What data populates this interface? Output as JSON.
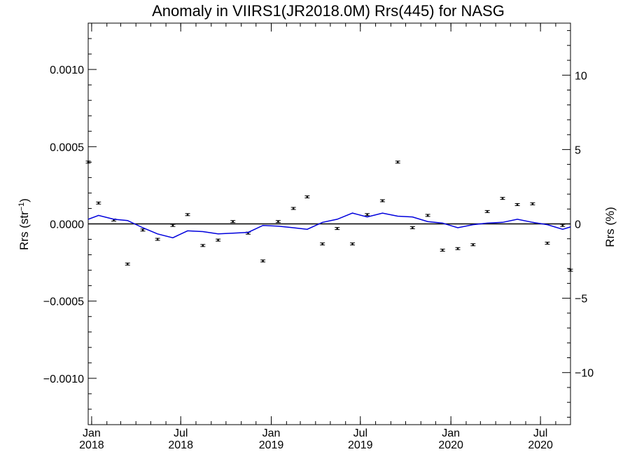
{
  "chart_data": {
    "type": "scatter",
    "title": "Anomaly in VIIRS1(JR2018.0M) Rrs(445) for NASG",
    "ylabel": "Rrs (str",
    "ylabel_sup": "−1",
    "ylabel_close": ")",
    "y2label": "Rrs (%)",
    "xlim": [
      "2017-12-25",
      "2020-08-31"
    ],
    "ylim": [
      -0.0013,
      0.0013
    ],
    "y2lim": [
      -13.5,
      13.5
    ],
    "grid": false,
    "zero_line": true,
    "y_ticks": [
      {
        "value": 0.001,
        "label": "0.0010"
      },
      {
        "value": 0.0005,
        "label": "0.0005"
      },
      {
        "value": 0,
        "label": "0.0000"
      },
      {
        "value": -0.0005,
        "label": "−0.0005"
      },
      {
        "value": -0.001,
        "label": "−0.0010"
      }
    ],
    "y2_ticks": [
      {
        "value": 10,
        "label": "10"
      },
      {
        "value": 5,
        "label": "5"
      },
      {
        "value": 0,
        "label": "0"
      },
      {
        "value": -5,
        "label": "−5"
      },
      {
        "value": -10,
        "label": "−10"
      }
    ],
    "x_ticks": [
      {
        "date": "2018-01-01",
        "month": "Jan",
        "year": "2018"
      },
      {
        "date": "2018-07-01",
        "month": "Jul",
        "year": "2018"
      },
      {
        "date": "2019-01-01",
        "month": "Jan",
        "year": "2019"
      },
      {
        "date": "2019-07-01",
        "month": "Jul",
        "year": "2019"
      },
      {
        "date": "2020-01-01",
        "month": "Jan",
        "year": "2020"
      },
      {
        "date": "2020-07-01",
        "month": "Jul",
        "year": "2020"
      }
    ],
    "series": [
      {
        "kind": "points_with_errorbars",
        "color": "#000000",
        "points": [
          {
            "x": "2017-12-25",
            "y": 0.0004
          },
          {
            "x": "2018-01-15",
            "y": 0.000135
          },
          {
            "x": "2018-02-15",
            "y": 2.5e-05
          },
          {
            "x": "2018-03-15",
            "y": -0.00026
          },
          {
            "x": "2018-04-15",
            "y": -4e-05
          },
          {
            "x": "2018-05-15",
            "y": -0.0001
          },
          {
            "x": "2018-06-15",
            "y": -1e-05
          },
          {
            "x": "2018-07-15",
            "y": 6e-05
          },
          {
            "x": "2018-08-15",
            "y": -0.00014
          },
          {
            "x": "2018-09-15",
            "y": -0.000105
          },
          {
            "x": "2018-10-15",
            "y": 1.5e-05
          },
          {
            "x": "2018-11-15",
            "y": -6e-05
          },
          {
            "x": "2018-12-15",
            "y": -0.00024
          },
          {
            "x": "2019-01-15",
            "y": 1.5e-05
          },
          {
            "x": "2019-02-15",
            "y": 0.0001
          },
          {
            "x": "2019-03-15",
            "y": 0.000175
          },
          {
            "x": "2019-04-15",
            "y": -0.00013
          },
          {
            "x": "2019-05-15",
            "y": -3e-05
          },
          {
            "x": "2019-06-15",
            "y": -0.00013
          },
          {
            "x": "2019-07-15",
            "y": 6e-05
          },
          {
            "x": "2019-08-15",
            "y": 0.00015
          },
          {
            "x": "2019-09-15",
            "y": 0.0004
          },
          {
            "x": "2019-10-15",
            "y": -2.5e-05
          },
          {
            "x": "2019-11-15",
            "y": 5.5e-05
          },
          {
            "x": "2019-12-15",
            "y": -0.00017
          },
          {
            "x": "2020-01-15",
            "y": -0.00016
          },
          {
            "x": "2020-02-15",
            "y": -0.000135
          },
          {
            "x": "2020-03-15",
            "y": 8e-05
          },
          {
            "x": "2020-04-15",
            "y": 0.000165
          },
          {
            "x": "2020-05-15",
            "y": 0.000125
          },
          {
            "x": "2020-06-15",
            "y": 0.00013
          },
          {
            "x": "2020-07-15",
            "y": -0.000125
          },
          {
            "x": "2020-08-15",
            "y": -1e-05
          },
          {
            "x": "2020-08-31",
            "y": -0.0003
          }
        ]
      },
      {
        "kind": "line",
        "color": "#0000dd",
        "points": [
          {
            "x": "2017-12-25",
            "y": 3e-05
          },
          {
            "x": "2018-01-15",
            "y": 5.5e-05
          },
          {
            "x": "2018-02-15",
            "y": 3e-05
          },
          {
            "x": "2018-03-15",
            "y": 2.2e-05
          },
          {
            "x": "2018-04-15",
            "y": -2.5e-05
          },
          {
            "x": "2018-05-15",
            "y": -6.5e-05
          },
          {
            "x": "2018-06-15",
            "y": -9e-05
          },
          {
            "x": "2018-07-15",
            "y": -4.5e-05
          },
          {
            "x": "2018-08-15",
            "y": -5e-05
          },
          {
            "x": "2018-09-15",
            "y": -6.5e-05
          },
          {
            "x": "2018-10-15",
            "y": -6e-05
          },
          {
            "x": "2018-11-15",
            "y": -5.5e-05
          },
          {
            "x": "2018-12-15",
            "y": -1e-05
          },
          {
            "x": "2019-01-15",
            "y": -1.5e-05
          },
          {
            "x": "2019-02-15",
            "y": -2.5e-05
          },
          {
            "x": "2019-03-15",
            "y": -3.5e-05
          },
          {
            "x": "2019-04-15",
            "y": 1e-05
          },
          {
            "x": "2019-05-15",
            "y": 3e-05
          },
          {
            "x": "2019-06-15",
            "y": 7e-05
          },
          {
            "x": "2019-07-15",
            "y": 4.5e-05
          },
          {
            "x": "2019-08-15",
            "y": 7e-05
          },
          {
            "x": "2019-09-15",
            "y": 5e-05
          },
          {
            "x": "2019-10-15",
            "y": 4.5e-05
          },
          {
            "x": "2019-11-15",
            "y": 1.5e-05
          },
          {
            "x": "2019-12-15",
            "y": 5e-06
          },
          {
            "x": "2020-01-15",
            "y": -2.5e-05
          },
          {
            "x": "2020-02-15",
            "y": -5e-06
          },
          {
            "x": "2020-03-15",
            "y": 5e-06
          },
          {
            "x": "2020-04-15",
            "y": 1e-05
          },
          {
            "x": "2020-05-15",
            "y": 3e-05
          },
          {
            "x": "2020-06-15",
            "y": 1e-05
          },
          {
            "x": "2020-07-15",
            "y": -5e-06
          },
          {
            "x": "2020-08-15",
            "y": -3.5e-05
          },
          {
            "x": "2020-08-31",
            "y": -2e-05
          }
        ]
      }
    ]
  }
}
